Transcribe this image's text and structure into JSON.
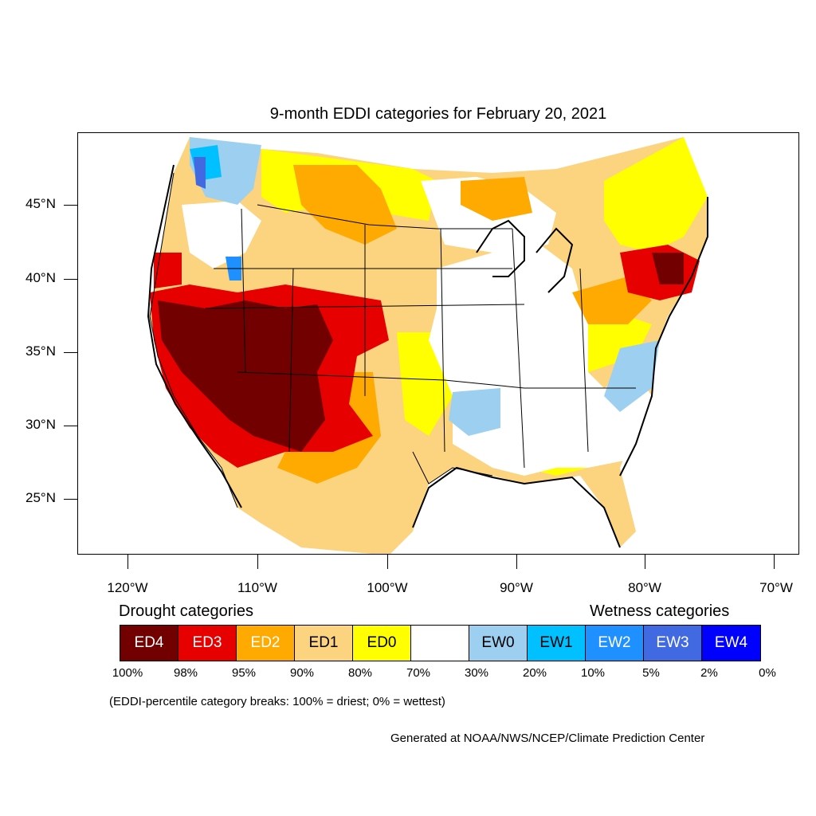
{
  "title": "9-month EDDI categories for February 20, 2021",
  "axes": {
    "latitude_labels": [
      "45°N",
      "40°N",
      "35°N",
      "30°N",
      "25°N"
    ],
    "longitude_labels": [
      "120°W",
      "110°W",
      "100°W",
      "90°W",
      "80°W",
      "70°W"
    ]
  },
  "legend": {
    "drought_heading": "Drought categories",
    "wetness_heading": "Wetness categories",
    "categories": [
      {
        "label": "ED4",
        "color": "#730000",
        "text_color": "#ffffff"
      },
      {
        "label": "ED3",
        "color": "#e60000",
        "text_color": "#ffffff"
      },
      {
        "label": "ED2",
        "color": "#ffaa00",
        "text_color": "#ffffff"
      },
      {
        "label": "ED1",
        "color": "#fcd37f",
        "text_color": "#000000"
      },
      {
        "label": "ED0",
        "color": "#ffff00",
        "text_color": "#000000"
      },
      {
        "label": "",
        "color": "#ffffff",
        "text_color": "#000000"
      },
      {
        "label": "EW0",
        "color": "#9ccff0",
        "text_color": "#000000"
      },
      {
        "label": "EW1",
        "color": "#00c0ff",
        "text_color": "#000000"
      },
      {
        "label": "EW2",
        "color": "#1e90ff",
        "text_color": "#ffffff"
      },
      {
        "label": "EW3",
        "color": "#4169e1",
        "text_color": "#ffffff"
      },
      {
        "label": "EW4",
        "color": "#0000ff",
        "text_color": "#ffffff"
      }
    ],
    "percentiles": [
      "100%",
      "98%",
      "95%",
      "90%",
      "80%",
      "70%",
      "30%",
      "20%",
      "10%",
      "5%",
      "2%",
      "0%"
    ]
  },
  "note": "(EDDI-percentile category breaks: 100% = driest; 0% = wettest)",
  "credit": "Generated at NOAA/NWS/NCEP/Climate Prediction Center"
}
